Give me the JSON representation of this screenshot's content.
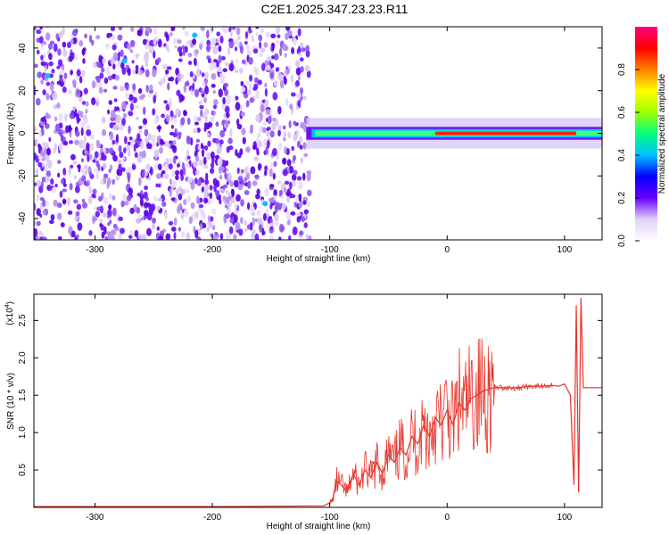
{
  "title": "C2E1.2025.347.23.23.R11",
  "chart_data": [
    {
      "type": "heatmap",
      "xlabel": "Height of straight line (km)",
      "ylabel": "Frequency (Hz)",
      "xlim": [
        -352,
        132
      ],
      "ylim": [
        -50,
        50
      ],
      "xticks": [
        -300,
        -200,
        -100,
        0,
        100
      ],
      "yticks": [
        -40,
        -20,
        0,
        20,
        40
      ],
      "xtick_labels": [
        "-300",
        "-200",
        "-100",
        "0",
        "100"
      ],
      "ytick_labels": [
        "-40",
        "-20",
        "0",
        "20",
        "40"
      ],
      "noise_region_x": [
        -352,
        -117
      ],
      "signal_band": {
        "x": [
          -120,
          132
        ],
        "center_frequency_hz": 0,
        "width_hz": 6
      },
      "peak_amplitude_region_x": [
        -10,
        110
      ],
      "colorbar": {
        "label": "Normalized spectral amplitude",
        "range": [
          0.0,
          1.0
        ],
        "ticks": [
          0.0,
          0.2,
          0.4,
          0.6,
          0.8
        ],
        "tick_labels": [
          "0.0",
          "0.2",
          "0.4",
          "0.6",
          "0.8"
        ],
        "colors": [
          "#ffffff",
          "#e0d0f8",
          "#6a00ff",
          "#0000ff",
          "#00c0ff",
          "#00ff80",
          "#a0ff00",
          "#ffff00",
          "#ff8000",
          "#ff0000",
          "#ff0080"
        ]
      }
    },
    {
      "type": "line",
      "xlabel": "Height of straight line (km)",
      "ylabel": "SNR (10 * v/v)",
      "y_multiplier_label": "(x10",
      "y_multiplier_exp": "4",
      "y_multiplier_close": ")",
      "xlim": [
        -352,
        132
      ],
      "ylim": [
        0,
        2.85
      ],
      "xticks": [
        -300,
        -200,
        -100,
        0,
        100
      ],
      "yticks": [
        0.5,
        1.0,
        1.5,
        2.0,
        2.5
      ],
      "xtick_labels": [
        "-300",
        "-200",
        "-100",
        "0",
        "100"
      ],
      "ytick_labels": [
        "0.5",
        "1.0",
        "1.5",
        "2.0",
        "2.5"
      ],
      "line_color": "#e8332a",
      "series": [
        {
          "name": "SNR",
          "x": [
            -352,
            -300,
            -200,
            -105,
            -98,
            -94,
            -90,
            -85,
            -80,
            -75,
            -70,
            -65,
            -60,
            -55,
            -50,
            -45,
            -40,
            -35,
            -30,
            -25,
            -20,
            -15,
            -10,
            -5,
            0,
            5,
            10,
            15,
            20,
            25,
            30,
            35,
            40,
            50,
            60,
            70,
            80,
            90,
            95,
            100,
            105,
            108,
            110,
            112,
            114,
            116,
            120,
            125,
            132
          ],
          "y": [
            0.01,
            0.01,
            0.01,
            0.02,
            0.08,
            0.35,
            0.3,
            0.2,
            0.45,
            0.3,
            0.5,
            0.4,
            0.6,
            0.45,
            0.7,
            0.6,
            0.8,
            0.7,
            0.95,
            0.85,
            1.1,
            0.95,
            1.2,
            1.1,
            1.3,
            1.1,
            1.4,
            1.3,
            1.45,
            1.5,
            1.55,
            1.58,
            1.6,
            1.6,
            1.6,
            1.62,
            1.62,
            1.63,
            1.62,
            1.65,
            1.5,
            0.3,
            2.7,
            0.2,
            2.8,
            1.6,
            1.6,
            1.6,
            1.6
          ]
        }
      ],
      "band_x": [
        -100,
        90
      ]
    }
  ]
}
